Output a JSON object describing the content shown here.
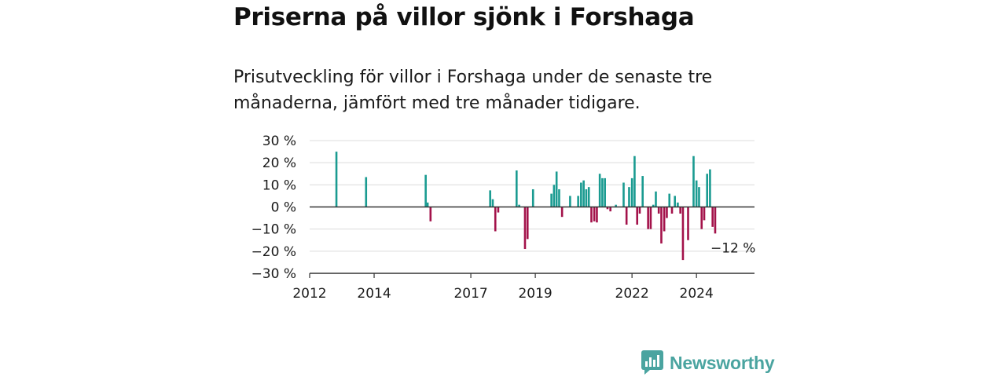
{
  "title": "Priserna på villor sjönk i Forshaga",
  "subtitle": "Prisutveckling för villor i Forshaga under de senaste tre månaderna, jämfört med tre månader tidigare.",
  "brand": "Newsworthy",
  "colors": {
    "positive": "#1a9b91",
    "negative": "#a3124a",
    "grid": "#dcdcdc",
    "axis": "#333333",
    "brand": "#4aa4a0"
  },
  "chart_data": {
    "type": "bar",
    "ylim": [
      -30,
      30
    ],
    "yticks": [
      30,
      20,
      10,
      0,
      -10,
      -20,
      -30
    ],
    "ytick_labels": [
      "30 %",
      "20 %",
      "10 %",
      "0 %",
      "−10 %",
      "−20 %",
      "−30 %"
    ],
    "xlim": [
      2012.0,
      2025.8
    ],
    "xticks": [
      2012,
      2014,
      2017,
      2019,
      2022,
      2024
    ],
    "xtick_labels": [
      "2012",
      "2014",
      "2017",
      "2019",
      "2022",
      "2024"
    ],
    "grid": true,
    "annotation": {
      "x": 2025.0,
      "y": -12,
      "text": "−12 %"
    },
    "x": [
      2012.83,
      2013.75,
      2015.6,
      2015.66,
      2015.75,
      2017.6,
      2017.68,
      2017.76,
      2017.85,
      2018.42,
      2018.5,
      2018.68,
      2018.76,
      2018.93,
      2019.5,
      2019.58,
      2019.66,
      2019.74,
      2019.83,
      2020.08,
      2020.33,
      2020.42,
      2020.5,
      2020.58,
      2020.66,
      2020.74,
      2020.83,
      2020.91,
      2021.0,
      2021.08,
      2021.16,
      2021.24,
      2021.33,
      2021.5,
      2021.74,
      2021.83,
      2021.91,
      2022.0,
      2022.08,
      2022.16,
      2022.24,
      2022.33,
      2022.5,
      2022.58,
      2022.66,
      2022.74,
      2022.83,
      2022.91,
      2023.0,
      2023.08,
      2023.16,
      2023.24,
      2023.33,
      2023.42,
      2023.5,
      2023.58,
      2023.74,
      2023.91,
      2024.0,
      2024.08,
      2024.16,
      2024.24,
      2024.33,
      2024.42,
      2024.5,
      2024.58,
      2024.66,
      2024.74,
      2024.83,
      2024.91
    ],
    "values": [
      25,
      13.5,
      14.5,
      2,
      -6.5,
      7.5,
      3.5,
      -11,
      -2.5,
      16.5,
      1,
      -19,
      -14.5,
      8,
      6,
      10,
      16,
      8,
      -4.5,
      5,
      5,
      11,
      12,
      8,
      9,
      -7,
      -6.5,
      -7,
      15,
      13,
      13,
      -1,
      -2,
      1,
      11,
      -8,
      9,
      13,
      23,
      -8,
      -3,
      14,
      -10,
      -10,
      1,
      7,
      -3,
      -16.5,
      -11,
      -5,
      6,
      -3,
      5,
      2,
      -3,
      -24,
      -15,
      23,
      12,
      9,
      -10,
      -6,
      15,
      17,
      -9,
      -12,
      0,
      0,
      0,
      0
    ]
  }
}
